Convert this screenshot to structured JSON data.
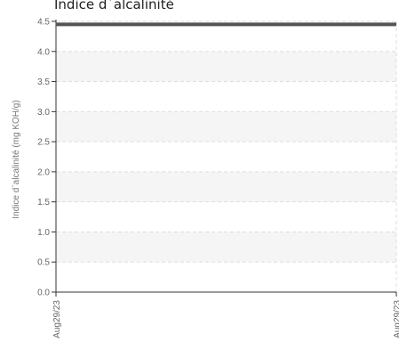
{
  "chart_data": {
    "type": "line",
    "title": "Indice d`alcalinité",
    "xlabel": "",
    "ylabel": "Indice d`alcalinité (mg KOH/g)",
    "x": [
      "Aug29/23",
      "Aug29/23"
    ],
    "x_tick_labels": [
      "Aug29/23",
      "Aug29/23"
    ],
    "y_ticks": [
      "0.0",
      "0.5",
      "1.0",
      "1.5",
      "2.0",
      "2.5",
      "3.0",
      "3.5",
      "4.0",
      "4.5"
    ],
    "ylim": [
      0,
      4.5
    ],
    "grid": true,
    "legend": "none",
    "series": [
      {
        "values": [
          4.45,
          4.45
        ],
        "color": "#555555"
      }
    ],
    "band_color": "#f5f5f5",
    "grid_color": "#dddddd",
    "axis_color": "#333333"
  }
}
